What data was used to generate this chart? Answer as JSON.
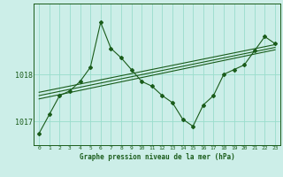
{
  "background_color": "#cceee8",
  "plot_bg_color": "#cceee8",
  "grid_color": "#99ddcc",
  "line_color": "#1a5c1a",
  "text_color": "#1a5c1a",
  "xlabel": "Graphe pression niveau de la mer (hPa)",
  "ylim": [
    1016.5,
    1019.5
  ],
  "xlim": [
    -0.5,
    23.5
  ],
  "yticks": [
    1017,
    1018
  ],
  "xticks": [
    0,
    1,
    2,
    3,
    4,
    5,
    6,
    7,
    8,
    9,
    10,
    11,
    12,
    13,
    14,
    15,
    16,
    17,
    18,
    19,
    20,
    21,
    22,
    23
  ],
  "main_data": [
    [
      0,
      1016.75
    ],
    [
      1,
      1017.15
    ],
    [
      2,
      1017.55
    ],
    [
      3,
      1017.65
    ],
    [
      4,
      1017.85
    ],
    [
      5,
      1018.15
    ],
    [
      6,
      1019.1
    ],
    [
      7,
      1018.55
    ],
    [
      8,
      1018.35
    ],
    [
      9,
      1018.1
    ],
    [
      10,
      1017.85
    ],
    [
      11,
      1017.75
    ],
    [
      12,
      1017.55
    ],
    [
      13,
      1017.4
    ],
    [
      14,
      1017.05
    ],
    [
      15,
      1016.9
    ],
    [
      16,
      1017.35
    ],
    [
      17,
      1017.55
    ],
    [
      18,
      1018.0
    ],
    [
      19,
      1018.1
    ],
    [
      20,
      1018.2
    ],
    [
      21,
      1018.5
    ],
    [
      22,
      1018.8
    ],
    [
      23,
      1018.65
    ]
  ],
  "trend_lines": [
    [
      [
        0,
        1017.48
      ],
      [
        23,
        1018.52
      ]
    ],
    [
      [
        0,
        1017.55
      ],
      [
        23,
        1018.57
      ]
    ],
    [
      [
        0,
        1017.62
      ],
      [
        23,
        1018.63
      ]
    ]
  ]
}
